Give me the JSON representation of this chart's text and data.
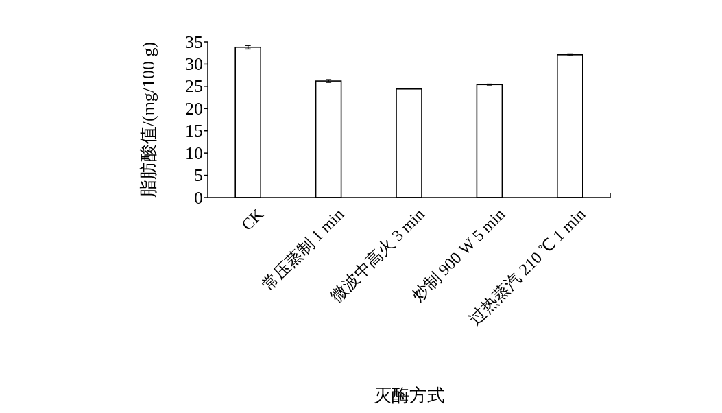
{
  "chart_data": {
    "type": "bar",
    "xlabel": "灭酶方式",
    "ylabel": "脂肪酸值/(mg/100 g)",
    "categories": [
      "CK",
      "常压蒸制 1 min",
      "微波中高火 3 min",
      "炒制 900 W 5 min",
      "过热蒸汽 210 ℃ 1 min"
    ],
    "values": [
      33.8,
      26.2,
      24.4,
      25.4,
      32.1
    ],
    "errors": [
      0.4,
      0.3,
      null,
      0.1,
      0.2
    ],
    "color": "#ffffff",
    "ylim": [
      0,
      35
    ],
    "yticks": [
      0,
      5,
      10,
      15,
      20,
      25,
      30,
      35
    ]
  }
}
